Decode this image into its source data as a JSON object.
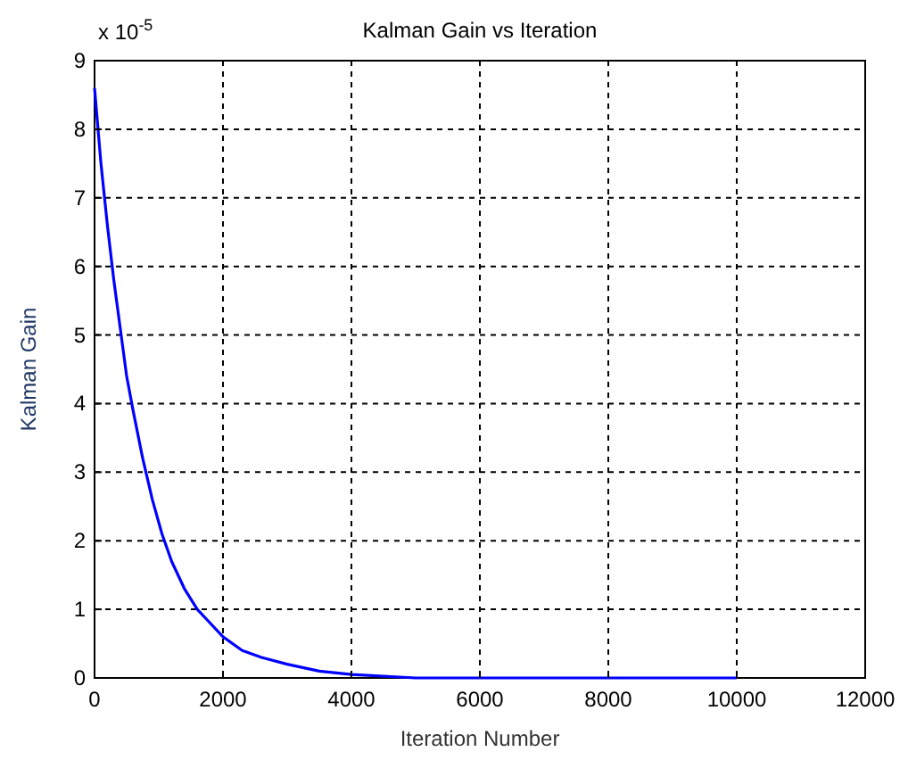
{
  "chart_data": {
    "type": "line",
    "title": "Kalman Gain vs Iteration",
    "xlabel": "Iteration Number",
    "ylabel": "Kalman Gain",
    "annotations": [
      "x 10$^{-5}$"
    ],
    "x": [
      0,
      100,
      200,
      300,
      400,
      500,
      600,
      750,
      900,
      1050,
      1200,
      1400,
      1600,
      1800,
      2000,
      2300,
      2600,
      3000,
      3500,
      4000,
      5000,
      6000,
      8000,
      10000
    ],
    "series": [
      {
        "color": "#0000ff",
        "values": [
          8.6,
          7.5,
          6.6,
          5.8,
          5.1,
          4.4,
          3.9,
          3.2,
          2.6,
          2.1,
          1.7,
          1.3,
          1.0,
          0.8,
          0.6,
          0.4,
          0.3,
          0.2,
          0.1,
          0.05,
          0,
          0,
          0,
          0
        ]
      }
    ],
    "xlim": [
      0,
      12000
    ],
    "xticks": [
      0,
      2000,
      4000,
      6000,
      8000,
      10000,
      12000
    ],
    "ylim": [
      0,
      9
    ],
    "yticks": [
      0,
      1,
      2,
      3,
      4,
      5,
      6,
      7,
      8,
      9
    ],
    "grid": true,
    "line_style": "solid",
    "marker": "none"
  }
}
